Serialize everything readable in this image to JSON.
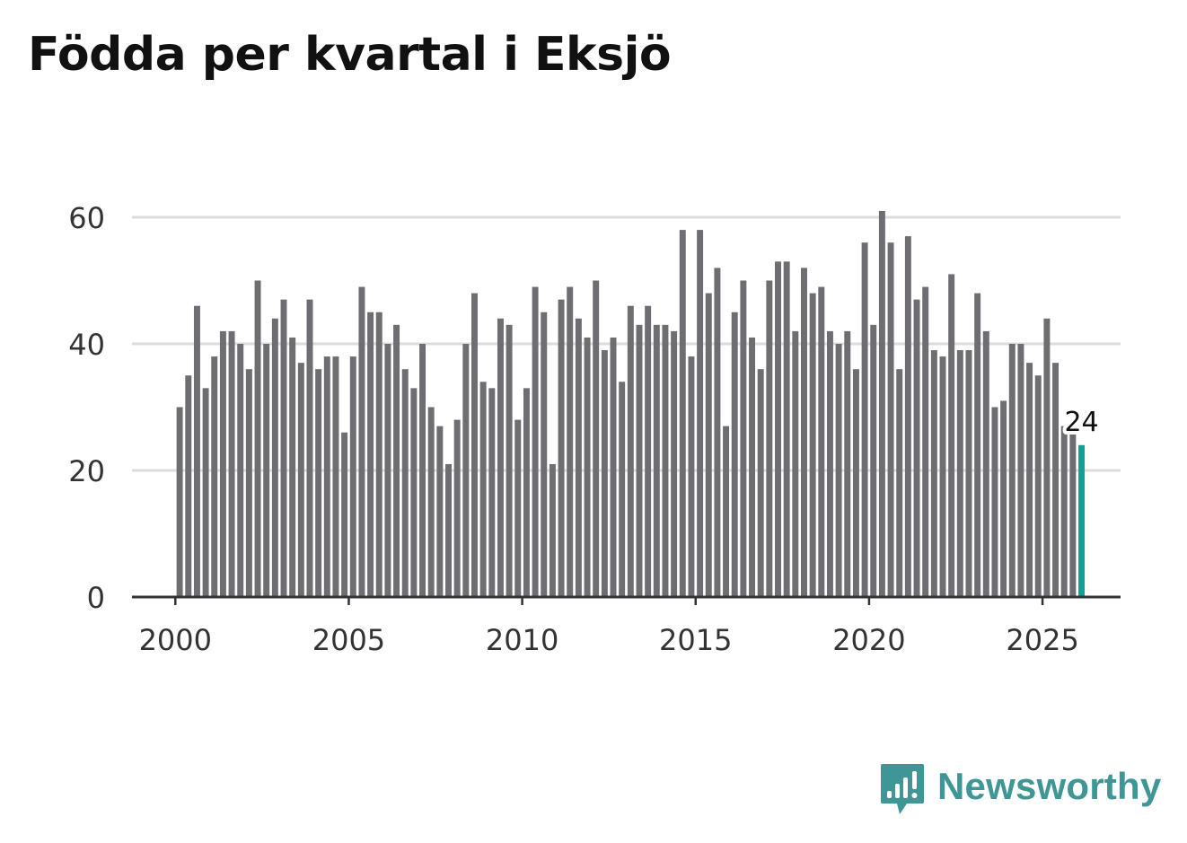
{
  "title": "Födda per kvartal i Eksjö",
  "brand": {
    "name": "Newsworthy",
    "logo_icon": "bar-chart-speech-bubble-icon",
    "color": "#3e9796"
  },
  "colors": {
    "bar": "#6e6d72",
    "highlight": "#12a092",
    "grid": "#dcdcdc",
    "axis": "#333333",
    "tick_text": "#333333",
    "title": "#111111"
  },
  "chart_data": {
    "type": "bar",
    "title": "Födda per kvartal i Eksjö",
    "xlabel": "",
    "ylabel": "",
    "x_start": 2000,
    "x_step": 0.25,
    "xlim": [
      1998.75,
      2027.25
    ],
    "ylim": [
      0,
      65
    ],
    "yticks": [
      0,
      20,
      40,
      60
    ],
    "xticks": [
      2000,
      2005,
      2010,
      2015,
      2020,
      2025
    ],
    "grid": true,
    "highlight_index": 104,
    "highlight_label": "24",
    "values": [
      30,
      35,
      46,
      33,
      38,
      42,
      42,
      40,
      36,
      50,
      40,
      44,
      47,
      41,
      37,
      47,
      36,
      38,
      38,
      26,
      38,
      49,
      45,
      45,
      40,
      43,
      36,
      33,
      40,
      30,
      27,
      21,
      28,
      40,
      48,
      34,
      33,
      44,
      43,
      28,
      33,
      49,
      45,
      21,
      47,
      49,
      44,
      41,
      50,
      39,
      41,
      34,
      46,
      43,
      46,
      43,
      43,
      42,
      58,
      38,
      58,
      48,
      52,
      27,
      45,
      50,
      41,
      36,
      50,
      53,
      53,
      42,
      52,
      48,
      49,
      42,
      40,
      42,
      36,
      56,
      43,
      61,
      56,
      36,
      57,
      47,
      49,
      39,
      38,
      51,
      39,
      39,
      48,
      42,
      30,
      31,
      40,
      40,
      37,
      35,
      44,
      37,
      27,
      26,
      24
    ]
  }
}
